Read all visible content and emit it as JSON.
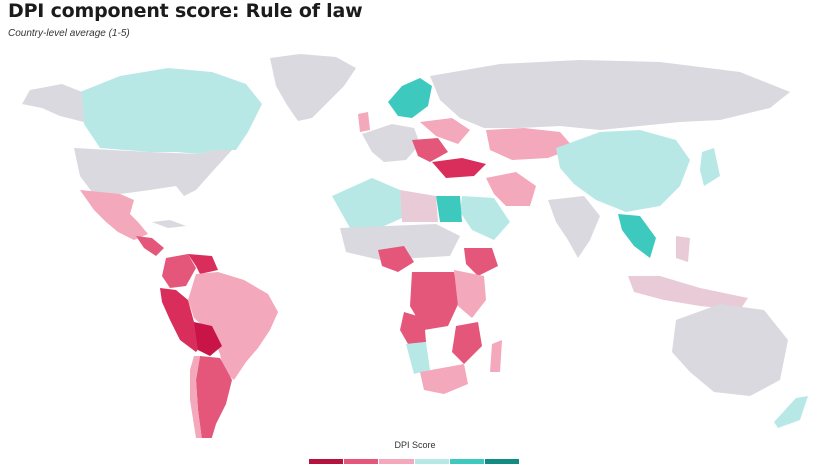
{
  "title": "DPI component score: Rule of law",
  "subtitle": "Country-level average (1-5)",
  "legend": {
    "title": "DPI Score",
    "colors": [
      "#b5123e",
      "#e4577a",
      "#f3a8bc",
      "#b8e8e6",
      "#3ec9bf",
      "#138a82"
    ]
  },
  "colors": {
    "no_data": "#d9d9df",
    "ocean": "#ffffff"
  }
}
